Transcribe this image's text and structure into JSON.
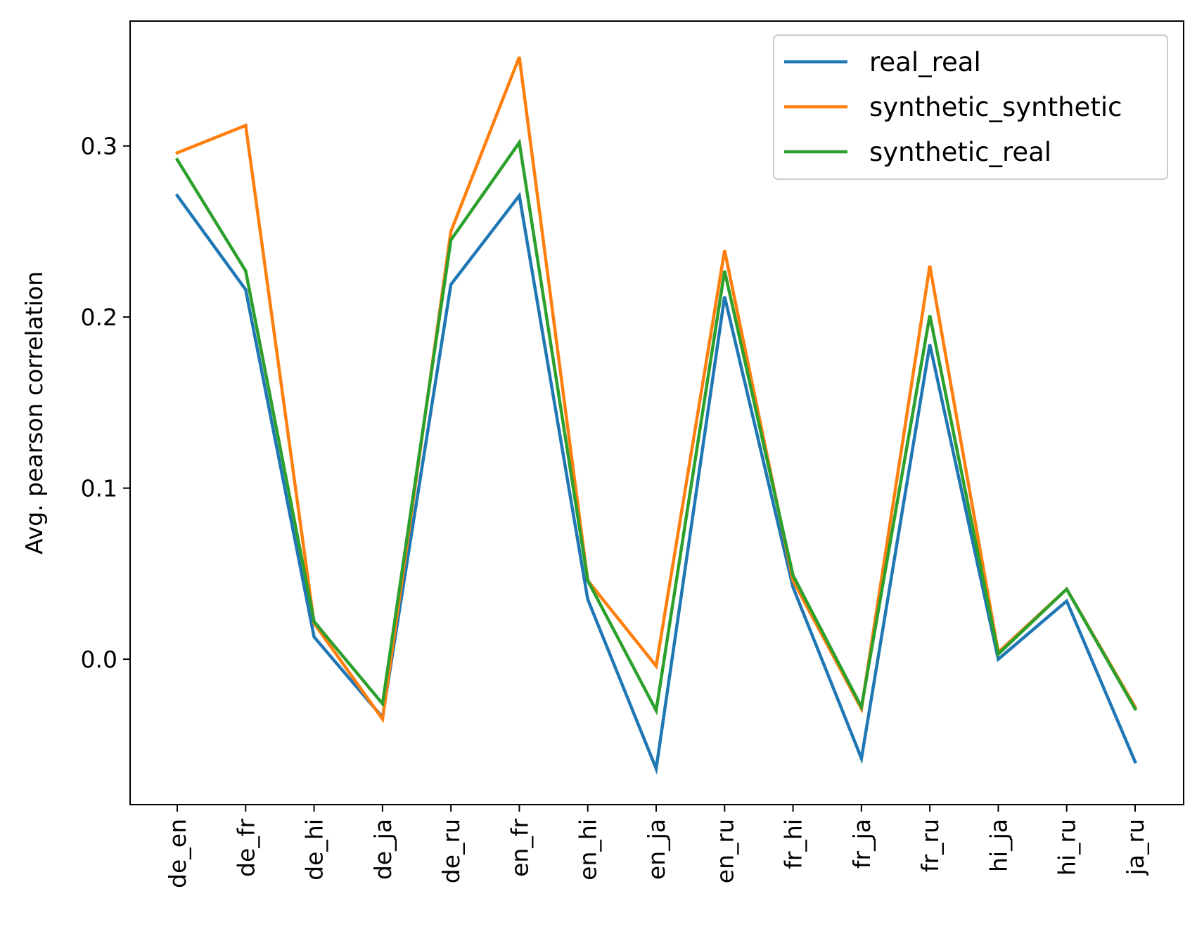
{
  "chart_data": {
    "type": "line",
    "title": "",
    "xlabel": "",
    "ylabel": "Avg. pearson correlation",
    "categories": [
      "de_en",
      "de_fr",
      "de_hi",
      "de_ja",
      "de_ru",
      "en_fr",
      "en_hi",
      "en_ja",
      "en_ru",
      "fr_hi",
      "fr_ja",
      "fr_ru",
      "hi_ja",
      "hi_ru",
      "ja_ru"
    ],
    "ylim": [
      -0.085,
      0.373
    ],
    "yticks": [
      0.0,
      0.1,
      0.2,
      0.3
    ],
    "ytick_labels": [
      "0.0",
      "0.1",
      "0.2",
      "0.3"
    ],
    "grid": false,
    "legend_position": "top-right",
    "series": [
      {
        "name": "real_real",
        "color": "#1f77b4",
        "values": [
          0.271,
          0.216,
          0.013,
          -0.034,
          0.219,
          0.271,
          0.035,
          -0.064,
          0.212,
          0.042,
          -0.058,
          0.184,
          0.0,
          0.034,
          -0.06
        ]
      },
      {
        "name": "synthetic_synthetic",
        "color": "#ff7f0e",
        "values": [
          0.296,
          0.312,
          0.021,
          -0.035,
          0.25,
          0.352,
          0.046,
          -0.004,
          0.239,
          0.046,
          -0.029,
          0.23,
          0.004,
          0.041,
          -0.028
        ]
      },
      {
        "name": "synthetic_real",
        "color": "#2ca02c",
        "values": [
          0.292,
          0.227,
          0.022,
          -0.026,
          0.245,
          0.302,
          0.046,
          -0.03,
          0.227,
          0.049,
          -0.028,
          0.201,
          0.003,
          0.041,
          -0.029
        ]
      }
    ]
  }
}
